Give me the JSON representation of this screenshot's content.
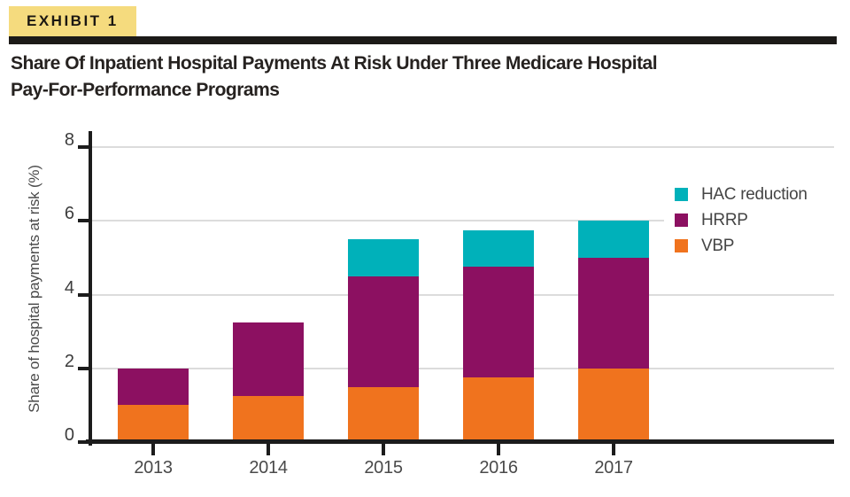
{
  "exhibit": {
    "label": "EXHIBIT 1"
  },
  "title": {
    "line1": "Share Of Inpatient Hospital Payments At Risk Under Three Medicare Hospital",
    "line2": "Pay-For-Performance Programs"
  },
  "chart_data": {
    "type": "bar",
    "stacked": true,
    "categories": [
      "2013",
      "2014",
      "2015",
      "2016",
      "2017"
    ],
    "series": [
      {
        "name": "VBP",
        "color": "#F0731E",
        "values": [
          1.0,
          1.25,
          1.5,
          1.75,
          2.0
        ]
      },
      {
        "name": "HRRP",
        "color": "#8C1061",
        "values": [
          1.0,
          2.0,
          3.0,
          3.0,
          3.0
        ]
      },
      {
        "name": "HAC reduction",
        "color": "#00B1BA",
        "values": [
          0,
          0,
          1.0,
          1.0,
          1.0
        ]
      }
    ],
    "totals": [
      2.0,
      3.25,
      5.5,
      5.75,
      6.0
    ],
    "title": "",
    "xlabel": "",
    "ylabel": "Share of hospital payments at risk (%)",
    "ylim": [
      0,
      8
    ],
    "yticks": [
      0,
      2,
      4,
      6,
      8
    ],
    "grid": true,
    "legend_position": "upper right",
    "legend_order": [
      "HAC reduction",
      "HRRP",
      "VBP"
    ]
  },
  "colors": {
    "badge_bg": "#F5DB7E",
    "rule": "#1c1a18",
    "axis": "#1c1c1c",
    "gridline": "#dcdcdc",
    "title_text": "#262220",
    "label_text": "#4a4a4a"
  }
}
